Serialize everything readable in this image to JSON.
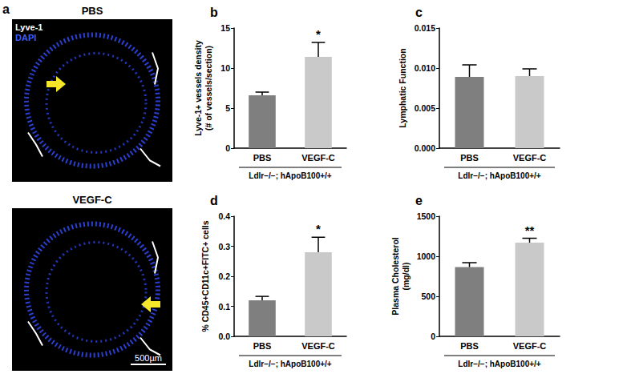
{
  "figure": {
    "panel_a": {
      "letter": "a",
      "top_title": "PBS",
      "bottom_title": "VEGF-C",
      "stain_labels": [
        {
          "text": "Lyve-1",
          "color": "#ffffff"
        },
        {
          "text": "DAPI",
          "color": "#3d5cff"
        }
      ],
      "scale_bar": "500µm"
    }
  },
  "chart_data": [
    {
      "panel_label": "b",
      "type": "bar",
      "ylabel": "Lyve-1+ vessels density\n(# of vessels/section)",
      "categories": [
        "PBS",
        "VEGF-C"
      ],
      "values": [
        6.6,
        11.4
      ],
      "errors": [
        0.4,
        1.8
      ],
      "significance": [
        null,
        "*"
      ],
      "colors": [
        "#7f7f7f",
        "#c9c9c9"
      ],
      "group_label": "Ldlr−/−; hApoB100+/+",
      "ylim": [
        0,
        15
      ],
      "yticks": [
        0,
        5,
        10,
        15
      ],
      "grid": false
    },
    {
      "panel_label": "c",
      "type": "bar",
      "ylabel": "Lymphatic Function",
      "categories": [
        "PBS",
        "VEGF-C"
      ],
      "values": [
        0.0089,
        0.009
      ],
      "errors": [
        0.0015,
        0.0009
      ],
      "significance": [
        null,
        null
      ],
      "colors": [
        "#7f7f7f",
        "#c9c9c9"
      ],
      "group_label": "Ldlr−/−; hApoB100+/+",
      "ylim": [
        0,
        0.015
      ],
      "yticks": [
        {
          "value": 0,
          "label": "0.000"
        },
        {
          "value": 0.005,
          "label": "0.005"
        },
        {
          "value": 0.01,
          "label": "0.010"
        },
        {
          "value": 0.015,
          "label": "0.015"
        }
      ],
      "grid": false
    },
    {
      "panel_label": "d",
      "type": "bar",
      "ylabel": "% CD45+CD11c+FITC+ cells",
      "categories": [
        "PBS",
        "VEGF-C"
      ],
      "values": [
        0.12,
        0.28
      ],
      "errors": [
        0.013,
        0.05
      ],
      "significance": [
        null,
        "*"
      ],
      "colors": [
        "#7f7f7f",
        "#c9c9c9"
      ],
      "group_label": "Ldlr−/−; hApoB100+/+",
      "ylim": [
        0,
        0.4
      ],
      "yticks": [
        {
          "value": 0,
          "label": "0.0"
        },
        {
          "value": 0.1,
          "label": "0.1"
        },
        {
          "value": 0.2,
          "label": "0.2"
        },
        {
          "value": 0.3,
          "label": "0.3"
        },
        {
          "value": 0.4,
          "label": "0.4"
        }
      ],
      "grid": false
    },
    {
      "panel_label": "e",
      "type": "bar",
      "ylabel": "Plasma Cholesterol\n(mg/dl)",
      "categories": [
        "PBS",
        "VEGF-C"
      ],
      "values": [
        865,
        1170
      ],
      "errors": [
        55,
        55
      ],
      "significance": [
        null,
        "**"
      ],
      "colors": [
        "#7f7f7f",
        "#c9c9c9"
      ],
      "group_label": "Ldlr−/−; hApoB100+/+",
      "ylim": [
        0,
        1500
      ],
      "yticks": [
        0,
        500,
        1000,
        1500
      ],
      "grid": false
    }
  ]
}
